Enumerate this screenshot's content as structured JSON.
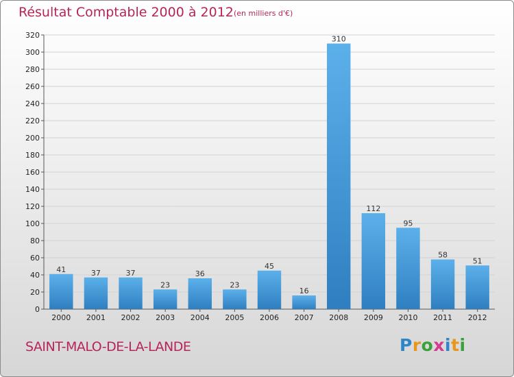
{
  "title": "Résultat Comptable 2000 à 2012",
  "subtitle": "(en milliers d'€)",
  "commune": "SAINT-MALO-DE-LA-LANDE",
  "logo": {
    "letters": [
      "P",
      "r",
      "o",
      "x",
      "i",
      "t",
      "i"
    ],
    "colors": [
      "#2e86c9",
      "#e8961c",
      "#3aa13a",
      "#d43a8e",
      "#2e86c9",
      "#e8961c",
      "#3aa13a"
    ]
  },
  "colors": {
    "bar_top": "#5cb0ea",
    "bar_bottom": "#2f7fc0",
    "title": "#b6245a"
  },
  "chart_data": {
    "type": "bar",
    "categories": [
      "2000",
      "2001",
      "2002",
      "2003",
      "2004",
      "2005",
      "2006",
      "2007",
      "2008",
      "2009",
      "2010",
      "2011",
      "2012"
    ],
    "values": [
      41,
      37,
      37,
      23,
      36,
      23,
      45,
      16,
      310,
      112,
      95,
      58,
      51
    ],
    "ylim": [
      0,
      320
    ],
    "yticks": [
      0,
      20,
      40,
      60,
      80,
      100,
      120,
      140,
      160,
      180,
      200,
      220,
      240,
      260,
      280,
      300,
      320
    ],
    "grid": true,
    "title": "Résultat Comptable 2000 à 2012",
    "xlabel": "",
    "ylabel": ""
  }
}
